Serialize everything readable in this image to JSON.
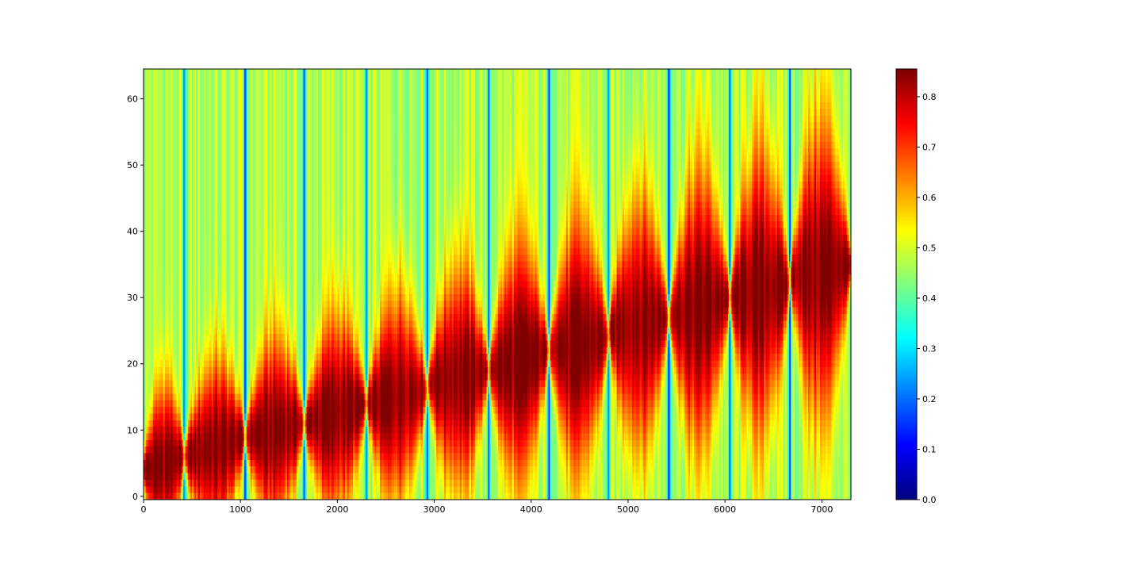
{
  "chart_data": {
    "type": "heatmap",
    "colormap": "jet",
    "title": "",
    "xlabel": "",
    "ylabel": "",
    "xlim": [
      0,
      7300
    ],
    "ylim": [
      -0.5,
      64.5
    ],
    "xticks": [
      0,
      1000,
      2000,
      3000,
      4000,
      5000,
      6000,
      7000
    ],
    "xtick_labels": [
      "0",
      "1000",
      "2000",
      "3000",
      "4000",
      "5000",
      "6000",
      "7000"
    ],
    "yticks": [
      0,
      10,
      20,
      30,
      40,
      50,
      60
    ],
    "ytick_labels": [
      "0",
      "10",
      "20",
      "30",
      "40",
      "50",
      "60"
    ],
    "value_range": [
      0.0,
      0.855
    ],
    "colorbar": {
      "ticks": [
        0.0,
        0.1,
        0.2,
        0.3,
        0.4,
        0.5,
        0.6,
        0.7,
        0.8
      ],
      "tick_labels": [
        "0.0",
        "0.1",
        "0.2",
        "0.3",
        "0.4",
        "0.5",
        "0.6",
        "0.7",
        "0.8"
      ]
    },
    "segments": [
      {
        "x_start": 0,
        "x_end": 420,
        "peak_row_start": 4,
        "peak_row_end": 6
      },
      {
        "x_start": 420,
        "x_end": 1050,
        "peak_row_start": 6,
        "peak_row_end": 9
      },
      {
        "x_start": 1050,
        "x_end": 1660,
        "peak_row_start": 9,
        "peak_row_end": 11
      },
      {
        "x_start": 1660,
        "x_end": 2300,
        "peak_row_start": 11,
        "peak_row_end": 14
      },
      {
        "x_start": 2300,
        "x_end": 2930,
        "peak_row_start": 14,
        "peak_row_end": 16
      },
      {
        "x_start": 2930,
        "x_end": 3560,
        "peak_row_start": 17,
        "peak_row_end": 19
      },
      {
        "x_start": 3560,
        "x_end": 4180,
        "peak_row_start": 19,
        "peak_row_end": 22
      },
      {
        "x_start": 4180,
        "x_end": 4800,
        "peak_row_start": 22,
        "peak_row_end": 24
      },
      {
        "x_start": 4800,
        "x_end": 5420,
        "peak_row_start": 25,
        "peak_row_end": 27
      },
      {
        "x_start": 5420,
        "x_end": 6050,
        "peak_row_start": 27,
        "peak_row_end": 30
      },
      {
        "x_start": 6050,
        "x_end": 6670,
        "peak_row_start": 30,
        "peak_row_end": 32
      },
      {
        "x_start": 6670,
        "x_end": 7300,
        "peak_row_start": 33,
        "peak_row_end": 35
      }
    ],
    "background_value": 0.47,
    "low_value_columns": [
      420,
      1050,
      1660,
      2300,
      2930,
      3560,
      4180,
      4800,
      5420,
      6050,
      6670
    ]
  }
}
